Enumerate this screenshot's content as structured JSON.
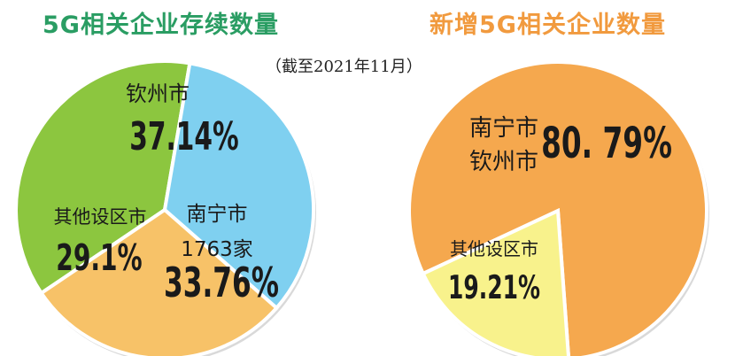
{
  "titles": {
    "left": "5G相关企业存续数量",
    "right": "新增5G相关企业数量",
    "note": "（截至2021年11月）"
  },
  "chart_data": [
    {
      "type": "pie",
      "title": "5G相关企业存续数量",
      "slices": [
        {
          "label": "钦州市",
          "value": 37.14,
          "value_label": "37.14%",
          "color": "#8cc63f"
        },
        {
          "label": "南宁市",
          "sublabel": "1763家",
          "value": 33.76,
          "value_label": "33.76%",
          "color": "#7fd0f0"
        },
        {
          "label": "其他设区市",
          "value": 29.1,
          "value_label": "29.1%",
          "color": "#f7c268"
        }
      ]
    },
    {
      "type": "pie",
      "title": "新增5G相关企业数量",
      "slices": [
        {
          "label": "南宁市 钦州市",
          "lines": [
            "南宁市",
            "钦州市"
          ],
          "value": 80.79,
          "value_label": "80. 79%",
          "color": "#f5a84e"
        },
        {
          "label": "其他设区市",
          "value": 19.21,
          "value_label": "19.21%",
          "color": "#f8f28c"
        }
      ]
    }
  ]
}
